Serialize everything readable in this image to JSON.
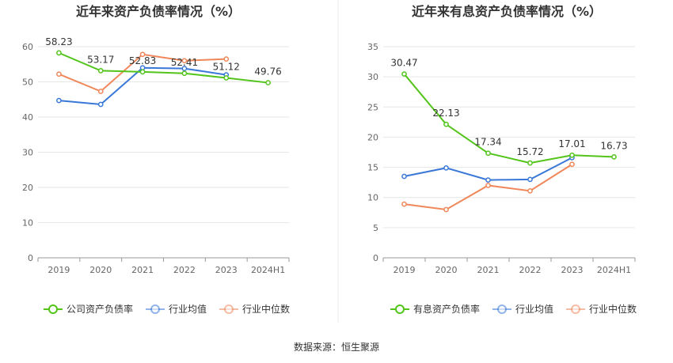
{
  "source_label": "数据来源：恒生聚源",
  "chart_data": [
    {
      "type": "line",
      "title": "近年来资产负债率情况（%）",
      "categories": [
        "2019",
        "2020",
        "2021",
        "2022",
        "2023",
        "2024H1"
      ],
      "ylim": [
        0,
        60
      ],
      "yticks": [
        0,
        10,
        20,
        30,
        40,
        50,
        60
      ],
      "grid": true,
      "legend_position": "bottom",
      "series": [
        {
          "name": "公司资产负债率",
          "color": "#52c41a",
          "values": [
            58.23,
            53.17,
            52.83,
            52.41,
            51.12,
            49.76
          ],
          "labels": [
            "58.23",
            "53.17",
            "52.83",
            "52.41",
            "51.12",
            "49.76"
          ]
        },
        {
          "name": "行业均值",
          "color": "#3a78d8",
          "values": [
            44.7,
            43.6,
            54.0,
            53.8,
            52.0,
            null
          ],
          "labels": []
        },
        {
          "name": "行业中位数",
          "color": "#f0875a",
          "values": [
            52.2,
            47.3,
            57.8,
            56.0,
            56.5,
            null
          ],
          "labels": []
        }
      ]
    },
    {
      "type": "line",
      "title": "近年来有息资产负债率情况（%）",
      "categories": [
        "2019",
        "2020",
        "2021",
        "2022",
        "2023",
        "2024H1"
      ],
      "ylim": [
        0,
        35
      ],
      "yticks": [
        0,
        5,
        10,
        15,
        20,
        25,
        30,
        35
      ],
      "grid": true,
      "legend_position": "bottom",
      "series": [
        {
          "name": "有息资产负债率",
          "color": "#52c41a",
          "values": [
            30.47,
            22.13,
            17.34,
            15.72,
            17.01,
            16.73
          ],
          "labels": [
            "30.47",
            "22.13",
            "17.34",
            "15.72",
            "17.01",
            "16.73"
          ]
        },
        {
          "name": "行业均值",
          "color": "#3a78d8",
          "values": [
            13.5,
            14.9,
            12.9,
            13.0,
            16.6,
            null
          ],
          "labels": []
        },
        {
          "name": "行业中位数",
          "color": "#f0875a",
          "values": [
            8.9,
            8.0,
            12.0,
            11.1,
            15.5,
            null
          ],
          "labels": []
        }
      ]
    }
  ]
}
